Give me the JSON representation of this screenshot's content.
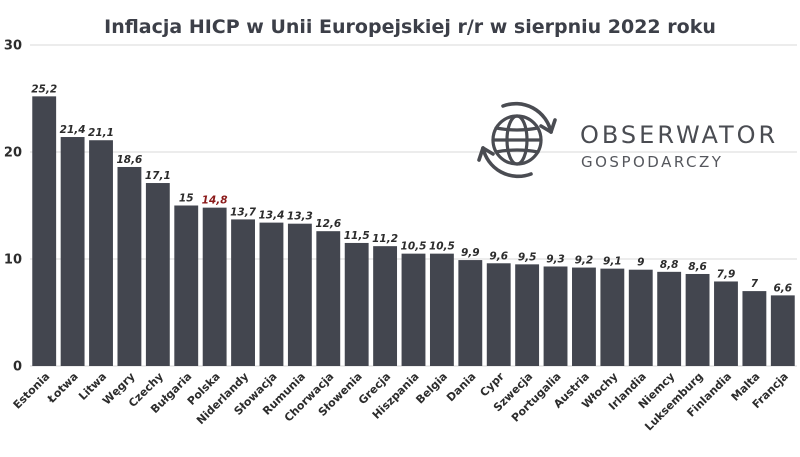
{
  "chart_data": {
    "type": "bar",
    "title": "Inflacja HICP w Unii Europejskiej r/r w sierpniu 2022 roku",
    "categories": [
      "Estonia",
      "Łotwa",
      "Litwa",
      "Węgry",
      "Czechy",
      "Bułgaria",
      "Polska",
      "Niderlandy",
      "Słowacja",
      "Rumunia",
      "Chorwacja",
      "Słowenia",
      "Grecja",
      "Hiszpania",
      "Belgia",
      "Dania",
      "Cypr",
      "Szwecja",
      "Portugalia",
      "Austria",
      "Włochy",
      "Irlandia",
      "Niemcy",
      "Luksemburg",
      "Finlandia",
      "Malta",
      "Francja"
    ],
    "values": [
      25.2,
      21.4,
      21.1,
      18.6,
      17.1,
      15,
      14.8,
      13.7,
      13.4,
      13.3,
      12.6,
      11.5,
      11.2,
      10.5,
      10.5,
      9.9,
      9.6,
      9.5,
      9.3,
      9.2,
      9.1,
      9,
      8.8,
      8.6,
      7.9,
      7,
      6.6
    ],
    "value_labels": [
      "25,2",
      "21,4",
      "21,1",
      "18,6",
      "17,1",
      "15",
      "14,8",
      "13,7",
      "13,4",
      "13,3",
      "12,6",
      "11,5",
      "11,2",
      "10,5",
      "10,5",
      "9,9",
      "9,6",
      "9,5",
      "9,3",
      "9,2",
      "9,1",
      "9",
      "8,8",
      "8,6",
      "7,9",
      "7",
      "6,6"
    ],
    "highlight_category": "Polska",
    "ylim": [
      0,
      30
    ],
    "yticks": [
      0,
      10,
      20,
      30
    ],
    "grid": true,
    "xlabel": "",
    "ylabel": ""
  },
  "logo": {
    "name": "OBSERWATOR",
    "subname": "GOSPODARCZY"
  },
  "colors": {
    "bar": "#43464f",
    "highlight_label": "#8b1a1a",
    "grid": "#d9d9d9",
    "text": "#2c2c2c"
  }
}
